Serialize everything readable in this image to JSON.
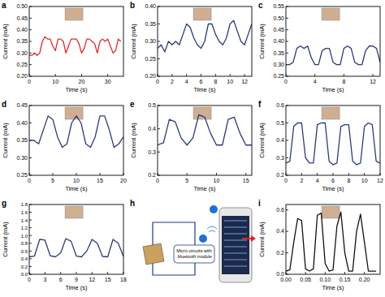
{
  "chart_data": [
    {
      "type": "line",
      "panel": "a",
      "xlabel": "Time (s)",
      "ylabel": "Current (mA)",
      "color": "#e02a2a",
      "xlim": [
        0,
        36
      ],
      "ylim": [
        0.2,
        0.5
      ],
      "xticks": [
        0,
        10,
        20,
        30
      ],
      "yticks": [
        {
          "value": 0.2,
          "label": "0.20"
        },
        {
          "value": 0.25,
          "label": "0.25"
        },
        {
          "value": 0.3,
          "label": "0.30"
        },
        {
          "value": 0.35,
          "label": "0.35"
        },
        {
          "value": 0.4,
          "label": "0.40"
        },
        {
          "value": 0.45,
          "label": "0.45"
        },
        {
          "value": 0.5,
          "label": "0.50"
        }
      ],
      "x": [
        0,
        1,
        2,
        3,
        4,
        5,
        6,
        7,
        8,
        9,
        10,
        11,
        12,
        13,
        14,
        15,
        16,
        17,
        18,
        19,
        20,
        21,
        22,
        23,
        24,
        25,
        26,
        27,
        28,
        29,
        30,
        31,
        32,
        33,
        34,
        35
      ],
      "values": [
        0.29,
        0.29,
        0.3,
        0.29,
        0.3,
        0.35,
        0.37,
        0.36,
        0.36,
        0.33,
        0.31,
        0.36,
        0.36,
        0.35,
        0.3,
        0.33,
        0.36,
        0.36,
        0.36,
        0.34,
        0.3,
        0.32,
        0.36,
        0.36,
        0.35,
        0.34,
        0.3,
        0.35,
        0.36,
        0.35,
        0.36,
        0.33,
        0.3,
        0.31,
        0.36,
        0.35
      ]
    },
    {
      "type": "line",
      "panel": "b",
      "xlabel": "Time (s)",
      "ylabel": "Current (mA)",
      "color": "#2b3a7a",
      "xlim": [
        0,
        13
      ],
      "ylim": [
        0.2,
        0.4
      ],
      "xticks": [
        0,
        2,
        4,
        6,
        8,
        10,
        12
      ],
      "yticks": [
        {
          "value": 0.2,
          "label": "0.20"
        },
        {
          "value": 0.25,
          "label": "0.25"
        },
        {
          "value": 0.3,
          "label": "0.30"
        },
        {
          "value": 0.35,
          "label": "0.35"
        },
        {
          "value": 0.4,
          "label": "0.40"
        }
      ],
      "x": [
        0,
        0.5,
        1,
        1.5,
        2,
        2.5,
        3,
        3.5,
        4,
        4.5,
        5,
        5.5,
        6,
        6.5,
        7,
        7.5,
        8,
        8.5,
        9,
        9.5,
        10,
        10.5,
        11,
        11.5,
        12,
        12.5,
        13
      ],
      "values": [
        0.28,
        0.29,
        0.27,
        0.3,
        0.29,
        0.3,
        0.29,
        0.32,
        0.35,
        0.34,
        0.31,
        0.29,
        0.28,
        0.3,
        0.35,
        0.35,
        0.32,
        0.3,
        0.29,
        0.31,
        0.35,
        0.36,
        0.33,
        0.3,
        0.29,
        0.32,
        0.35
      ]
    },
    {
      "type": "line",
      "panel": "c",
      "xlabel": "Time (s)",
      "ylabel": "Current (mA)",
      "color": "#2b3a7a",
      "xlim": [
        0,
        13
      ],
      "ylim": [
        0.25,
        0.55
      ],
      "xticks": [
        0,
        4,
        8,
        12
      ],
      "yticks": [
        {
          "value": 0.25,
          "label": "0.25"
        },
        {
          "value": 0.3,
          "label": "0.30"
        },
        {
          "value": 0.35,
          "label": "0.35"
        },
        {
          "value": 0.4,
          "label": "0.40"
        },
        {
          "value": 0.45,
          "label": "0.45"
        },
        {
          "value": 0.5,
          "label": "0.50"
        },
        {
          "value": 0.55,
          "label": "0.55"
        }
      ],
      "x": [
        0,
        0.5,
        1,
        1.5,
        2,
        2.5,
        3,
        3.5,
        4,
        4.5,
        5,
        5.5,
        6,
        6.5,
        7,
        7.5,
        8,
        8.5,
        9,
        9.5,
        10,
        10.5,
        11,
        11.5,
        12,
        12.5,
        13
      ],
      "values": [
        0.3,
        0.3,
        0.31,
        0.37,
        0.38,
        0.37,
        0.38,
        0.33,
        0.3,
        0.3,
        0.36,
        0.37,
        0.37,
        0.31,
        0.3,
        0.3,
        0.37,
        0.38,
        0.37,
        0.31,
        0.3,
        0.3,
        0.36,
        0.38,
        0.38,
        0.37,
        0.31
      ]
    },
    {
      "type": "line",
      "panel": "d",
      "xlabel": "Time (s)",
      "ylabel": "Current (mA)",
      "color": "#2b3a7a",
      "xlim": [
        0,
        20
      ],
      "ylim": [
        0.25,
        0.45
      ],
      "xticks": [
        0,
        5,
        10,
        15,
        20
      ],
      "yticks": [
        {
          "value": 0.25,
          "label": "0.25"
        },
        {
          "value": 0.3,
          "label": "0.30"
        },
        {
          "value": 0.35,
          "label": "0.35"
        },
        {
          "value": 0.4,
          "label": "0.40"
        },
        {
          "value": 0.45,
          "label": "0.45"
        }
      ],
      "x": [
        0,
        1,
        2,
        3,
        4,
        5,
        6,
        7,
        8,
        9,
        10,
        11,
        12,
        13,
        14,
        15,
        16,
        17,
        18,
        19,
        20
      ],
      "values": [
        0.35,
        0.35,
        0.34,
        0.38,
        0.42,
        0.41,
        0.36,
        0.33,
        0.34,
        0.4,
        0.42,
        0.4,
        0.34,
        0.33,
        0.36,
        0.42,
        0.42,
        0.38,
        0.33,
        0.34,
        0.36
      ]
    },
    {
      "type": "line",
      "panel": "e",
      "xlabel": "Time (s)",
      "ylabel": "Current (mA)",
      "color": "#2b3a7a",
      "xlim": [
        0,
        16
      ],
      "ylim": [
        0.2,
        0.5
      ],
      "xticks": [
        0,
        5,
        10,
        15
      ],
      "yticks": [
        0.2,
        0.3,
        0.4,
        0.5
      ],
      "x": [
        0,
        1,
        2,
        3,
        4,
        5,
        6,
        7,
        8,
        9,
        10,
        11,
        12,
        13,
        14,
        15,
        16
      ],
      "values": [
        0.33,
        0.34,
        0.44,
        0.43,
        0.36,
        0.33,
        0.36,
        0.46,
        0.45,
        0.38,
        0.33,
        0.33,
        0.44,
        0.45,
        0.38,
        0.33,
        0.33
      ]
    },
    {
      "type": "line",
      "panel": "f",
      "xlabel": "Time (s)",
      "ylabel": "Current (mA)",
      "color": "#2b3a7a",
      "xlim": [
        0,
        12
      ],
      "ylim": [
        0.2,
        0.6
      ],
      "xticks": [
        0,
        2,
        4,
        6,
        8,
        10,
        12
      ],
      "yticks": [
        0.2,
        0.3,
        0.4,
        0.5,
        0.6
      ],
      "x": [
        0,
        0.5,
        1,
        1.5,
        2,
        2.5,
        3,
        3.5,
        4,
        4.5,
        5,
        5.5,
        6,
        6.5,
        7,
        7.5,
        8,
        8.5,
        9,
        9.5,
        10,
        10.5,
        11,
        11.5,
        12
      ],
      "values": [
        0.27,
        0.28,
        0.48,
        0.5,
        0.5,
        0.3,
        0.27,
        0.27,
        0.49,
        0.5,
        0.5,
        0.28,
        0.26,
        0.27,
        0.48,
        0.49,
        0.49,
        0.28,
        0.26,
        0.27,
        0.48,
        0.5,
        0.49,
        0.28,
        0.27
      ]
    },
    {
      "type": "line",
      "panel": "g",
      "xlabel": "Time (s)",
      "ylabel": "Current (mA)",
      "color": "#2b3a7a",
      "xlim": [
        0,
        18
      ],
      "ylim": [
        0,
        1.8
      ],
      "xticks": [
        0,
        3,
        6,
        9,
        12,
        15,
        18
      ],
      "yticks": [
        {
          "value": 0,
          "label": "0.0"
        },
        0.2,
        0.4,
        0.6,
        0.8,
        {
          "value": 1,
          "label": "1.0"
        },
        1.2,
        1.4,
        1.6,
        1.8
      ],
      "x": [
        0,
        1,
        2,
        3,
        4,
        5,
        6,
        7,
        8,
        9,
        10,
        11,
        12,
        13,
        14,
        15,
        16,
        17,
        18
      ],
      "values": [
        0.45,
        0.47,
        0.9,
        0.88,
        0.48,
        0.45,
        0.55,
        0.92,
        0.85,
        0.47,
        0.45,
        0.6,
        0.9,
        0.8,
        0.46,
        0.45,
        0.9,
        0.8,
        0.46
      ]
    },
    {
      "type": "diagram",
      "panel": "h",
      "label": "Micro circuits with bluetooth module"
    },
    {
      "type": "line",
      "panel": "i",
      "xlabel": "Time (s)",
      "ylabel": "Current (mA)",
      "color": "#111111",
      "xlim": [
        0,
        0.24
      ],
      "ylim": [
        0,
        0.65
      ],
      "xticks": [
        {
          "value": 0,
          "label": "0.00"
        },
        {
          "value": 0.05,
          "label": "0.05"
        },
        {
          "value": 0.1,
          "label": "0.10"
        },
        {
          "value": 0.15,
          "label": "0.15"
        },
        {
          "value": 0.2,
          "label": "0.20"
        }
      ],
      "yticks": [
        {
          "value": 0,
          "label": "0.0"
        },
        0.2,
        0.4,
        0.6
      ],
      "x": [
        0,
        0.01,
        0.02,
        0.03,
        0.04,
        0.05,
        0.06,
        0.07,
        0.08,
        0.09,
        0.1,
        0.11,
        0.12,
        0.13,
        0.14,
        0.15,
        0.16,
        0.17,
        0.18,
        0.19,
        0.2,
        0.21,
        0.22,
        0.23
      ],
      "values": [
        0.03,
        0.04,
        0.3,
        0.52,
        0.5,
        0.05,
        0.03,
        0.05,
        0.55,
        0.57,
        0.1,
        0.03,
        0.04,
        0.45,
        0.58,
        0.2,
        0.03,
        0.03,
        0.4,
        0.56,
        0.3,
        0.03,
        0.03,
        0.03
      ]
    }
  ]
}
